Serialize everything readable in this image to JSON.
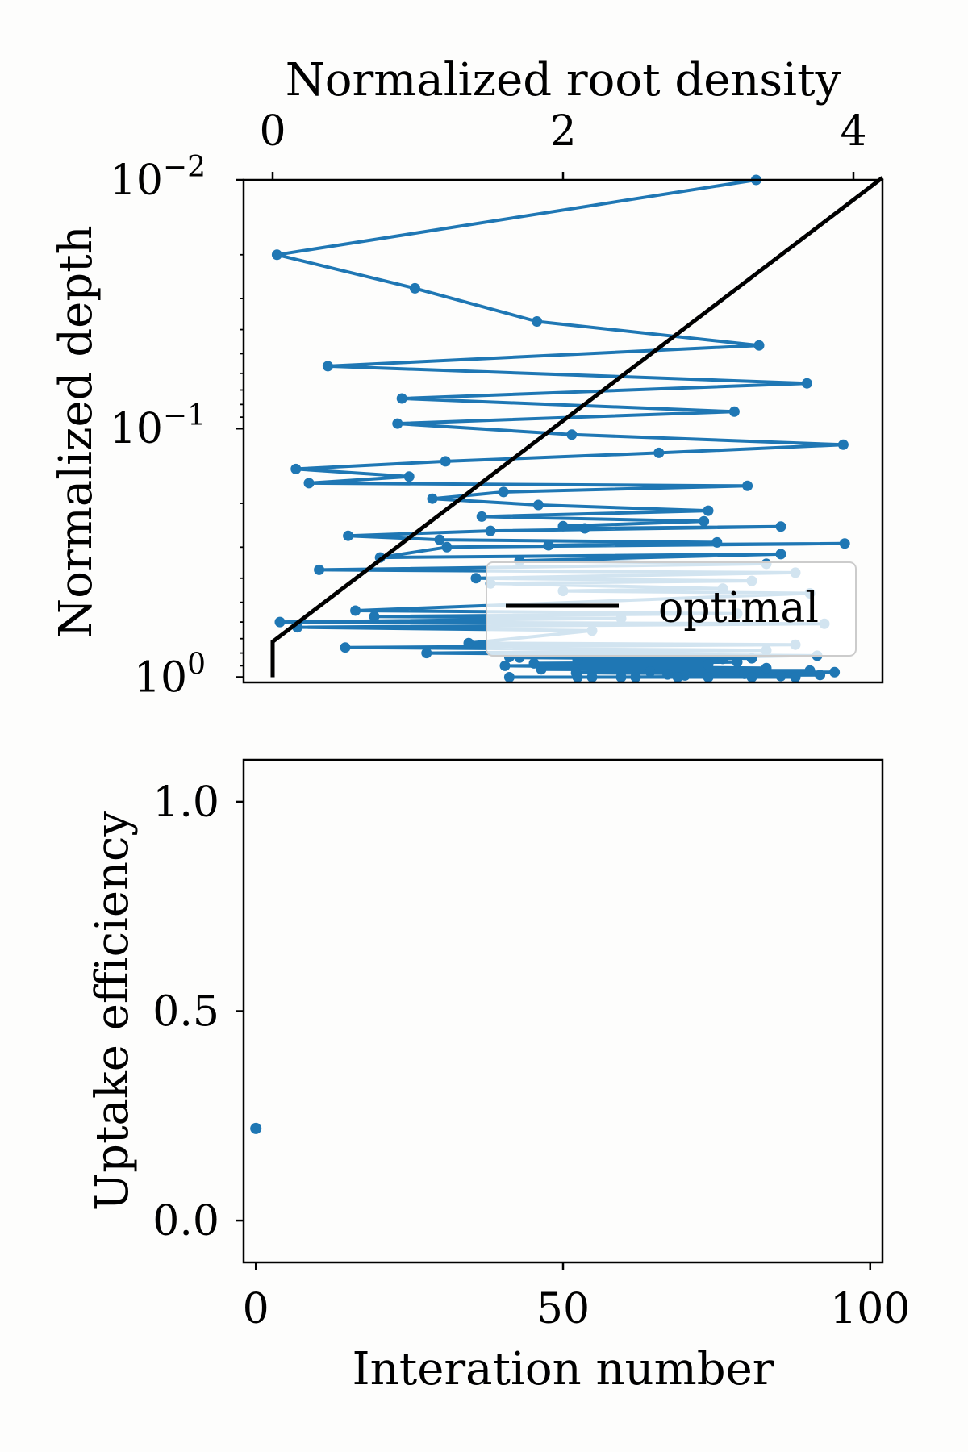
{
  "chart_data": [
    {
      "type": "line",
      "xlabel": "Normalized root density",
      "xlabel_position": "top",
      "ylabel": "Normalized depth",
      "xlim": [
        -0.2,
        4.2
      ],
      "ylim": [
        1.05,
        0.01
      ],
      "yscale": "log",
      "y_inverted": true,
      "grid": false,
      "x_ticks": [
        {
          "value": 0,
          "label": "0"
        },
        {
          "value": 2,
          "label": "2"
        },
        {
          "value": 4,
          "label": "4"
        }
      ],
      "y_ticks": [
        {
          "value": 0.01,
          "base": "10",
          "exp": "−2"
        },
        {
          "value": 0.1,
          "base": "10",
          "exp": "−1"
        },
        {
          "value": 1,
          "base": "10",
          "exp": "0"
        }
      ],
      "legend": {
        "placement": "lower-right",
        "entries": [
          "optimal"
        ]
      },
      "series": [
        {
          "name": "",
          "color": "#1f77b4",
          "markers": true,
          "points": [
            [
              3.33,
              0.01
            ],
            [
              0.03,
              0.02
            ],
            [
              0.98,
              0.0273
            ],
            [
              1.82,
              0.0371
            ],
            [
              3.35,
              0.0463
            ],
            [
              0.38,
              0.0561
            ],
            [
              3.68,
              0.0658
            ],
            [
              0.89,
              0.0757
            ],
            [
              3.18,
              0.0855
            ],
            [
              0.86,
              0.0955
            ],
            [
              2.06,
              0.1058
            ],
            [
              3.93,
              0.1162
            ],
            [
              2.66,
              0.1253
            ],
            [
              1.19,
              0.1355
            ],
            [
              0.16,
              0.1455
            ],
            [
              0.94,
              0.156
            ],
            [
              0.25,
              0.1658
            ],
            [
              3.27,
              0.17
            ],
            [
              1.59,
              0.18
            ],
            [
              1.1,
              0.1915
            ],
            [
              1.83,
              0.203
            ],
            [
              3.0,
              0.214
            ],
            [
              1.44,
              0.226
            ],
            [
              2.97,
              0.236
            ],
            [
              2.0,
              0.247
            ],
            [
              2.15,
              0.252
            ],
            [
              3.5,
              0.248
            ],
            [
              1.5,
              0.258
            ],
            [
              0.52,
              0.27
            ],
            [
              1.15,
              0.28
            ],
            [
              3.06,
              0.287
            ],
            [
              1.9,
              0.295
            ],
            [
              3.94,
              0.29
            ],
            [
              1.2,
              0.3
            ],
            [
              0.74,
              0.33
            ],
            [
              3.5,
              0.32
            ],
            [
              1.7,
              0.34
            ],
            [
              3.4,
              0.35
            ],
            [
              0.32,
              0.37
            ],
            [
              3.6,
              0.38
            ],
            [
              1.4,
              0.4
            ],
            [
              3.3,
              0.41
            ],
            [
              1.5,
              0.42
            ],
            [
              3.1,
              0.44
            ],
            [
              2.0,
              0.45
            ],
            [
              3.7,
              0.46
            ],
            [
              0.57,
              0.54
            ],
            [
              3.2,
              0.555
            ],
            [
              0.7,
              0.57
            ],
            [
              2.4,
              0.58
            ],
            [
              0.05,
              0.6
            ],
            [
              3.8,
              0.61
            ],
            [
              0.17,
              0.63
            ],
            [
              2.2,
              0.65
            ],
            [
              1.35,
              0.73
            ],
            [
              3.6,
              0.74
            ],
            [
              0.5,
              0.76
            ],
            [
              3.4,
              0.78
            ],
            [
              1.06,
              0.8
            ],
            [
              3.75,
              0.82
            ],
            [
              1.63,
              0.83
            ],
            [
              3.3,
              0.84
            ],
            [
              1.7,
              0.835
            ],
            [
              3.1,
              0.845
            ],
            [
              2.1,
              0.85
            ],
            [
              3.2,
              0.87
            ],
            [
              1.8,
              0.88
            ],
            [
              3.0,
              0.89
            ],
            [
              1.6,
              0.9
            ],
            [
              3.4,
              0.92
            ],
            [
              1.85,
              0.93
            ],
            [
              3.7,
              0.94
            ],
            [
              2.6,
              0.95
            ],
            [
              3.87,
              0.955
            ],
            [
              2.09,
              0.96
            ],
            [
              3.25,
              0.97
            ],
            [
              2.72,
              0.975
            ],
            [
              3.77,
              0.98
            ],
            [
              2.84,
              0.985
            ],
            [
              3.5,
              0.99
            ],
            [
              2.4,
              1.0
            ],
            [
              3.0,
              1.0
            ],
            [
              1.63,
              1.0
            ],
            [
              2.5,
              1.0
            ],
            [
              2.79,
              1.0
            ],
            [
              3.3,
              1.0
            ],
            [
              2.1,
              1.0
            ],
            [
              3.6,
              1.0
            ],
            [
              2.2,
              1.0
            ]
          ]
        },
        {
          "name": "optimal",
          "color": "#000000",
          "markers": false,
          "points": [
            [
              0.0,
              1.0
            ],
            [
              0.0,
              0.72
            ],
            [
              4.2,
              0.0098
            ]
          ]
        }
      ]
    },
    {
      "type": "scatter",
      "xlabel": "Interation number",
      "ylabel": "Uptake efficiency",
      "xlim": [
        -2,
        102
      ],
      "ylim": [
        -0.1,
        1.1
      ],
      "grid": false,
      "x_ticks": [
        {
          "value": 0,
          "label": "0"
        },
        {
          "value": 50,
          "label": "50"
        },
        {
          "value": 100,
          "label": "100"
        }
      ],
      "y_ticks": [
        {
          "value": 0.0,
          "label": "0.0"
        },
        {
          "value": 0.5,
          "label": "0.5"
        },
        {
          "value": 1.0,
          "label": "1.0"
        }
      ],
      "series": [
        {
          "name": "",
          "color": "#1f77b4",
          "x": [
            0
          ],
          "y": [
            0.22
          ]
        }
      ]
    }
  ]
}
